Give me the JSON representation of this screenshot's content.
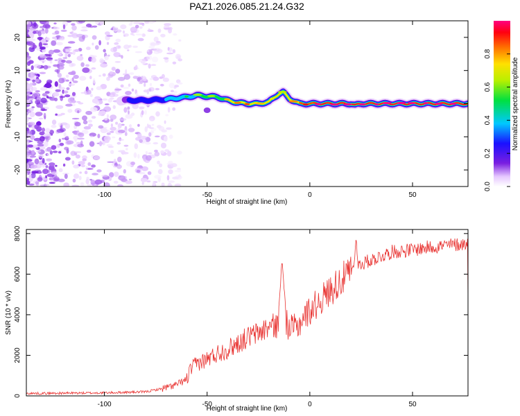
{
  "title": "PAZ1.2026.085.21.24.G32",
  "chart_data": [
    {
      "type": "heatmap",
      "name": "spectrogram",
      "xlabel": "Height of straight line (km)",
      "ylabel": "Frequency (Hz)",
      "xlim": [
        -138,
        77
      ],
      "ylim": [
        -25,
        25
      ],
      "xticks": [
        -100,
        -50,
        0,
        50
      ],
      "yticks": [
        -20,
        -10,
        0,
        10,
        20
      ],
      "colorbar": {
        "label": "Normalized spectral amplitude",
        "range": [
          0,
          1
        ],
        "ticks": [
          0.0,
          0.2,
          0.4,
          0.6,
          0.8
        ]
      },
      "ridge": {
        "description_x": [
          -90,
          -80,
          -70,
          -60,
          -55,
          -50,
          -45,
          -40,
          -35,
          -30,
          -25,
          -20,
          -15,
          -13,
          -10,
          -5,
          0,
          10,
          20,
          22,
          25,
          40,
          60,
          77
        ],
        "frequency_hz": [
          1,
          1,
          1.3,
          2,
          2.5,
          2.2,
          2,
          1,
          0.3,
          0,
          0,
          0.5,
          3,
          3.5,
          1.5,
          0,
          0,
          0,
          0,
          -0.5,
          0,
          0,
          0,
          0
        ],
        "amplitude": [
          0.15,
          0.25,
          0.35,
          0.45,
          0.55,
          0.5,
          0.6,
          0.7,
          0.75,
          0.8,
          0.7,
          0.65,
          0.6,
          0.55,
          0.7,
          0.8,
          0.9,
          0.95,
          0.95,
          0.85,
          0.95,
          0.95,
          0.95,
          0.95
        ]
      }
    },
    {
      "type": "line",
      "name": "snr",
      "xlabel": "Height of straight line (km)",
      "ylabel": "SNR (10 * v/v)",
      "xlim": [
        -138,
        77
      ],
      "ylim": [
        0,
        8200
      ],
      "xticks": [
        -100,
        -50,
        0,
        50
      ],
      "yticks": [
        0,
        2000,
        4000,
        6000,
        8000
      ],
      "color": "#e8312f",
      "trend_x": [
        -138,
        -100,
        -80,
        -70,
        -65,
        -60,
        -58,
        -55,
        -50,
        -45,
        -40,
        -35,
        -30,
        -25,
        -20,
        -15,
        -13,
        -10,
        -6,
        -3,
        0,
        5,
        10,
        15,
        20,
        25,
        30,
        40,
        50,
        60,
        70,
        77
      ],
      "trend_y": [
        120,
        150,
        200,
        400,
        550,
        800,
        1300,
        1600,
        1800,
        2100,
        2300,
        2600,
        2900,
        3100,
        3400,
        3500,
        4000,
        3300,
        3400,
        3900,
        4200,
        4700,
        5200,
        5700,
        6100,
        6500,
        6700,
        7100,
        7200,
        7350,
        7450,
        7500
      ],
      "spikes": [
        {
          "x": -13.5,
          "y": 6700
        },
        {
          "x": 22.5,
          "y": 7800
        }
      ]
    }
  ]
}
